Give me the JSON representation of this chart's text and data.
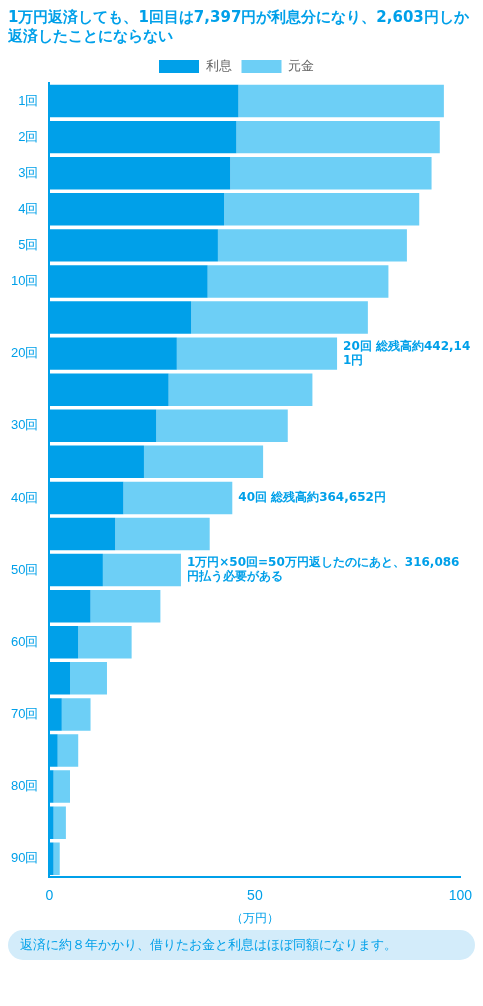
{
  "chart_data": {
    "type": "bar",
    "orientation": "horizontal",
    "stacked": true,
    "title": "1万円返済しても、1回目は7,397円が利息分になり、2,603円しか返済したことにならない",
    "xlabel": "（万円）",
    "categories": [
      "1回",
      "2回",
      "3回",
      "4回",
      "5回",
      "10回",
      null,
      "20回",
      null,
      "30回",
      null,
      "40回",
      null,
      "50回",
      null,
      "60回",
      null,
      "70回",
      null,
      "80回",
      null,
      "90回"
    ],
    "series": [
      {
        "name": "利息",
        "color": "#00a0e9",
        "values": [
          46,
          45.5,
          44,
          42.5,
          41,
          38.5,
          34.5,
          31,
          29,
          26,
          23,
          18,
          16,
          13,
          10,
          7,
          5,
          3,
          2,
          1,
          1,
          1
        ]
      },
      {
        "name": "元金",
        "color": "#6dcff6",
        "values": [
          50,
          49.5,
          49,
          47.5,
          46,
          44,
          43,
          39,
          35,
          32,
          29,
          26.5,
          23,
          19,
          17,
          13,
          9,
          7,
          5,
          4,
          3,
          1.5
        ]
      }
    ],
    "xlim": [
      0,
      100
    ],
    "xticks": [
      0,
      50,
      100
    ],
    "grid": false,
    "legend": "top",
    "annotations": [
      {
        "text": "20回 総残高約442,141円",
        "x": 70,
        "y": "20回"
      },
      {
        "text": "40回 総残高約364,652円",
        "x": 44.5,
        "y": "40回"
      },
      {
        "text": "1万円×50回=50万円返したのにあと、316,086円払う必要がある",
        "x": 32,
        "y": "50回"
      },
      "返済に約８年かかり、借りたお金と利息はほぼ同額になります。"
    ]
  }
}
